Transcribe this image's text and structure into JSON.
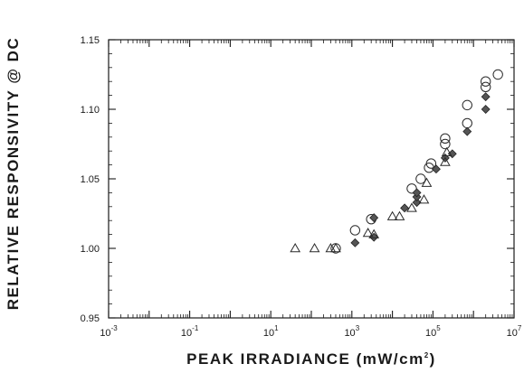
{
  "chart_data": {
    "type": "scatter",
    "xlabel": "PEAK IRRADIANCE (mW/cm²)",
    "ylabel": "RELATIVE RESPONSIVITY @ DC",
    "x_scale": "log",
    "xlim": [
      0.001,
      10000000
    ],
    "ylim": [
      0.95,
      1.15
    ],
    "x_ticks": [
      {
        "value": 0.001,
        "base": "10",
        "exp": "-3"
      },
      {
        "value": 0.1,
        "base": "10",
        "exp": "-1"
      },
      {
        "value": 10,
        "base": "10",
        "exp": "1"
      },
      {
        "value": 1000,
        "base": "10",
        "exp": "3"
      },
      {
        "value": 100000,
        "base": "10",
        "exp": "5"
      },
      {
        "value": 10000000,
        "base": "10",
        "exp": "7"
      }
    ],
    "y_ticks": [
      {
        "value": 0.95,
        "label": "0.95"
      },
      {
        "value": 1.0,
        "label": "1.00"
      },
      {
        "value": 1.05,
        "label": "1.05"
      },
      {
        "value": 1.1,
        "label": "1.10"
      },
      {
        "value": 1.15,
        "label": "1.15"
      }
    ],
    "grid": false,
    "legend": "none",
    "series": [
      {
        "marker": "circle-open",
        "points": [
          [
            400,
            1.0
          ],
          [
            1200,
            1.013
          ],
          [
            3000,
            1.021
          ],
          [
            30000,
            1.043
          ],
          [
            50000,
            1.05
          ],
          [
            80000,
            1.058
          ],
          [
            90000,
            1.061
          ],
          [
            200000,
            1.075
          ],
          [
            200000,
            1.079
          ],
          [
            700000,
            1.09
          ],
          [
            700000,
            1.103
          ],
          [
            2000000,
            1.116
          ],
          [
            2000000,
            1.12
          ],
          [
            4000000,
            1.125
          ]
        ]
      },
      {
        "marker": "diamond-filled",
        "points": [
          [
            1200,
            1.004
          ],
          [
            3500,
            1.008
          ],
          [
            3500,
            1.022
          ],
          [
            20000,
            1.029
          ],
          [
            40000,
            1.033
          ],
          [
            40000,
            1.037
          ],
          [
            40000,
            1.04
          ],
          [
            120000,
            1.057
          ],
          [
            200000,
            1.065
          ],
          [
            300000,
            1.068
          ],
          [
            700000,
            1.084
          ],
          [
            2000000,
            1.1
          ],
          [
            2000000,
            1.109
          ]
        ]
      },
      {
        "marker": "triangle-open",
        "points": [
          [
            40,
            1.0
          ],
          [
            120,
            1.0
          ],
          [
            300,
            1.0
          ],
          [
            400,
            1.0
          ],
          [
            2500,
            1.011
          ],
          [
            3500,
            1.01
          ],
          [
            10000,
            1.023
          ],
          [
            15000,
            1.023
          ],
          [
            30000,
            1.029
          ],
          [
            60000,
            1.035
          ],
          [
            70000,
            1.047
          ],
          [
            200000,
            1.062
          ],
          [
            220000,
            1.069
          ]
        ]
      }
    ]
  }
}
